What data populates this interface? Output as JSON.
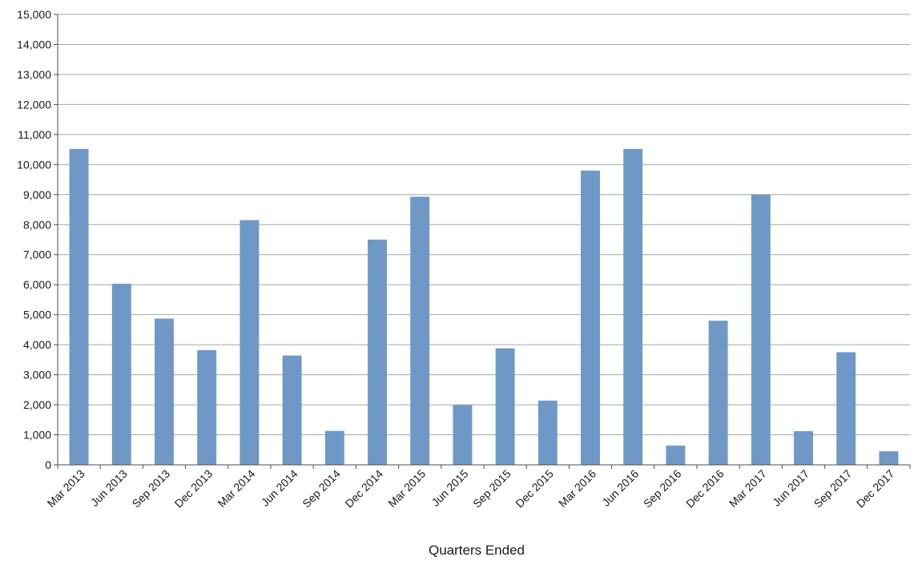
{
  "colors": {
    "bar": "#7098c6",
    "grid": "#a6a6a6",
    "axis": "#4d4d4d",
    "text": "#1a1a1a",
    "background": "#ffffff"
  },
  "chart_data": {
    "type": "bar",
    "title": "",
    "xlabel": "Quarters Ended",
    "ylabel": "",
    "ylim": [
      0,
      15000
    ],
    "y_ticks": [
      "0",
      "1,000",
      "2,000",
      "3,000",
      "4,000",
      "5,000",
      "6,000",
      "7,000",
      "8,000",
      "9,000",
      "10,000",
      "11,000",
      "12,000",
      "13,000",
      "14,000",
      "15,000"
    ],
    "grid": true,
    "legend": "none",
    "categories": [
      "Mar 2013",
      "Jun 2013",
      "Sep 2013",
      "Dec 2013",
      "Mar 2014",
      "Jun 2014",
      "Sep 2014",
      "Dec 2014",
      "Mar 2015",
      "Jun 2015",
      "Sep 2015",
      "Dec 2015",
      "Mar 2016",
      "Jun 2016",
      "Sep 2016",
      "Dec 2016",
      "Mar 2017",
      "Jun 2017",
      "Sep 2017",
      "Dec 2017"
    ],
    "values": [
      10520,
      6030,
      4870,
      3820,
      8150,
      3640,
      1130,
      7500,
      8930,
      1990,
      3880,
      2140,
      9800,
      10520,
      640,
      4800,
      9000,
      1120,
      3750,
      450
    ]
  }
}
